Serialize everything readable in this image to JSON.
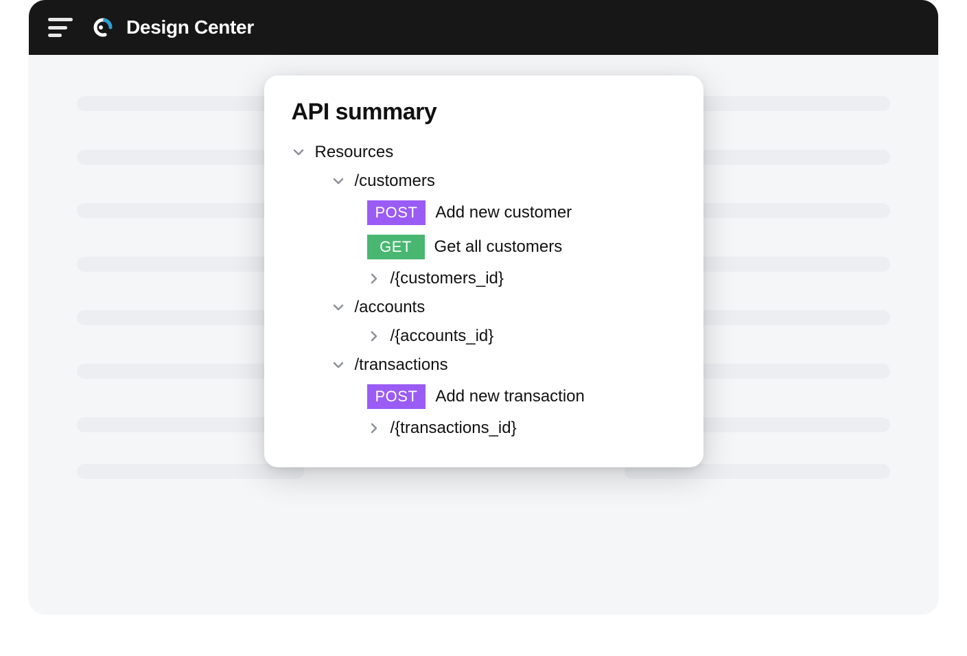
{
  "header": {
    "title": "Design Center"
  },
  "panel": {
    "title": "API summary",
    "section_label": "Resources",
    "resources": [
      {
        "path": "/customers",
        "expanded": true,
        "children": [
          {
            "type": "endpoint",
            "method": "POST",
            "label": "Add new customer"
          },
          {
            "type": "endpoint",
            "method": "GET",
            "label": "Get all customers"
          },
          {
            "type": "resource",
            "path": "/{customers_id}",
            "expanded": false
          }
        ]
      },
      {
        "path": "/accounts",
        "expanded": true,
        "children": [
          {
            "type": "resource",
            "path": "/{accounts_id}",
            "expanded": false
          }
        ]
      },
      {
        "path": "/transactions",
        "expanded": true,
        "children": [
          {
            "type": "endpoint",
            "method": "POST",
            "label": "Add new transaction"
          },
          {
            "type": "resource",
            "path": "/{transactions_id}",
            "expanded": false
          }
        ]
      }
    ]
  },
  "colors": {
    "header_bg": "#171717",
    "page_bg": "#f5f6f8",
    "skeleton": "#eceef1",
    "panel_bg": "#ffffff",
    "text": "#111111",
    "caret": "#8b8f97",
    "logo_accent": "#2aa0d6",
    "method_post_bg": "#9a5cf4",
    "method_get_bg": "#49b772"
  }
}
